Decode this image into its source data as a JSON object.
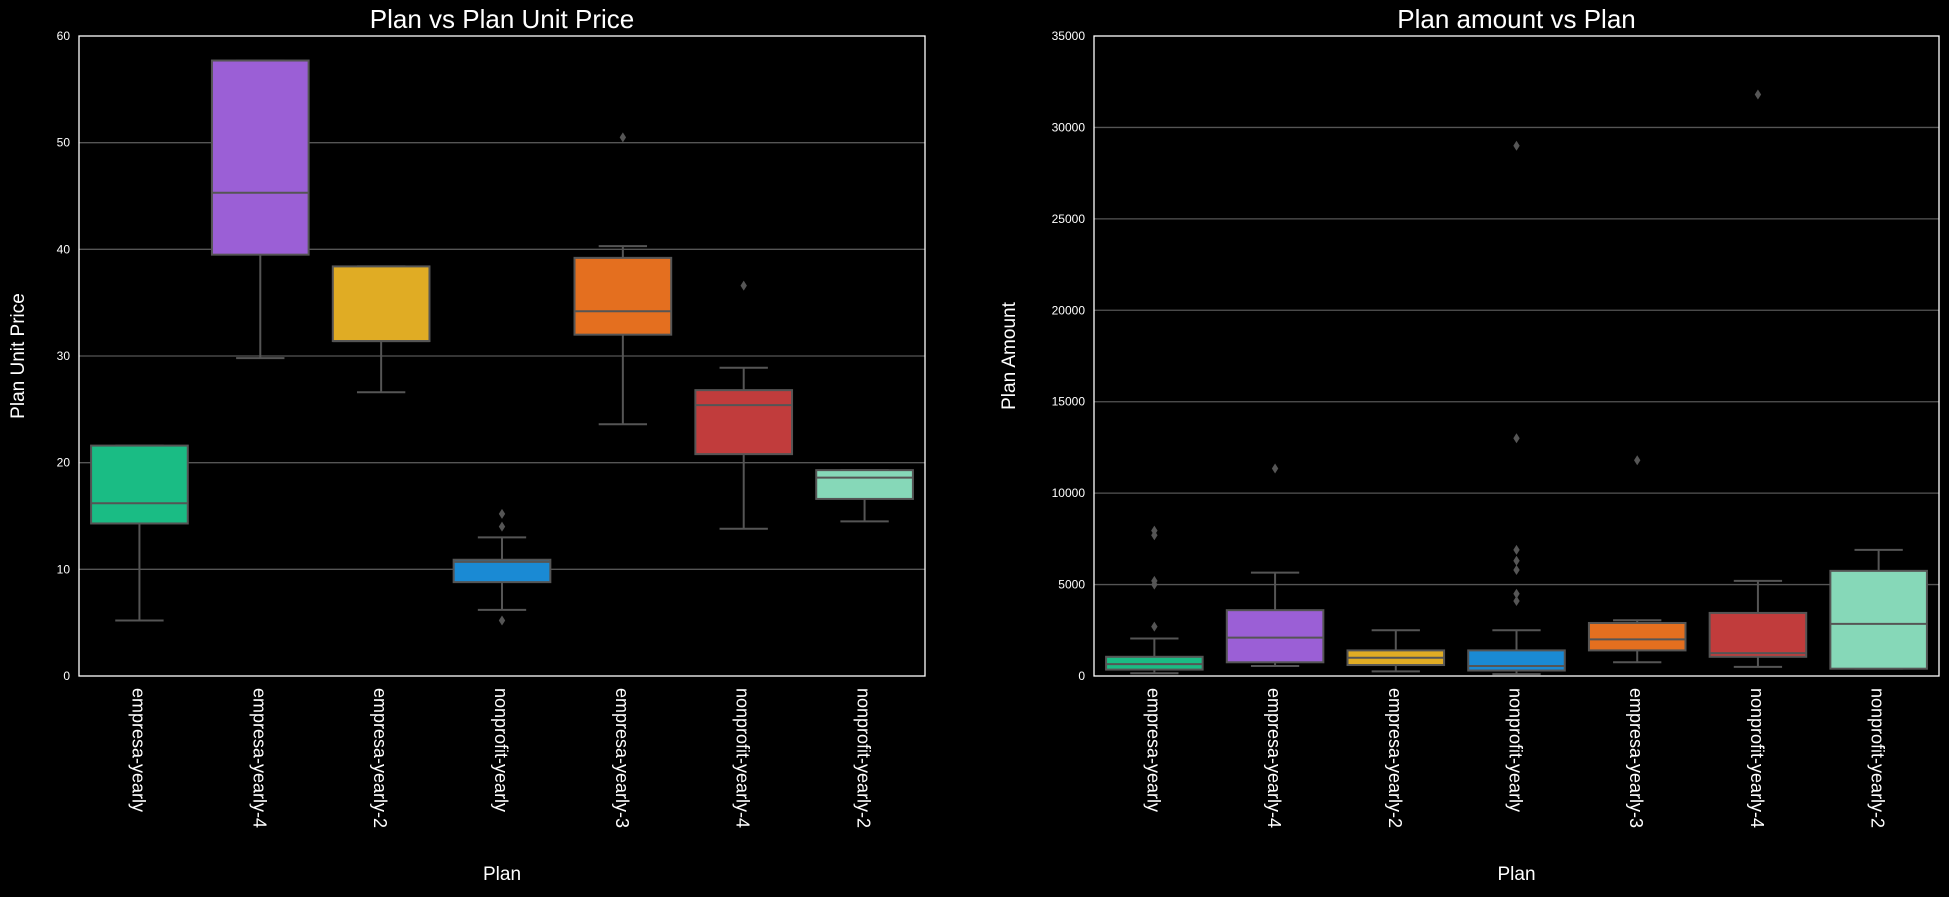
{
  "chart_data": [
    {
      "type": "box",
      "title": "Plan vs Plan Unit Price",
      "xlabel": "Plan",
      "ylabel": "Plan Unit Price",
      "ylim": [
        0,
        60
      ],
      "yticks": [
        0,
        10,
        20,
        30,
        40,
        50,
        60
      ],
      "grid": "horizontal",
      "categories": [
        "empresa-yearly",
        "empresa-yearly-4",
        "empresa-yearly-2",
        "nonprofit-yearly",
        "empresa-yearly-3",
        "nonprofit-yearly-4",
        "nonprofit-yearly-2"
      ],
      "colors": [
        "#1abc84",
        "#9b5fd6",
        "#e0ac24",
        "#1a8ad4",
        "#e46f1f",
        "#c13c3c",
        "#86d8b8"
      ],
      "boxes": [
        {
          "min": 5.2,
          "q1": 14.3,
          "median": 16.2,
          "q3": 21.6,
          "max": 21.6,
          "outliers": []
        },
        {
          "min": 29.8,
          "q1": 39.5,
          "median": 45.3,
          "q3": 57.7,
          "max": 57.7,
          "outliers": []
        },
        {
          "min": 26.6,
          "q1": 31.4,
          "median": 31.4,
          "q3": 38.4,
          "max": 38.4,
          "outliers": []
        },
        {
          "min": 6.2,
          "q1": 8.8,
          "median": 10.7,
          "q3": 10.9,
          "max": 13.0,
          "outliers": [
            5.2,
            14.0,
            15.2
          ]
        },
        {
          "min": 23.6,
          "q1": 32.0,
          "median": 34.2,
          "q3": 39.2,
          "max": 40.3,
          "outliers": [
            50.5
          ]
        },
        {
          "min": 13.8,
          "q1": 20.8,
          "median": 25.4,
          "q3": 26.8,
          "max": 28.9,
          "outliers": [
            36.6
          ]
        },
        {
          "min": 14.5,
          "q1": 16.6,
          "median": 18.6,
          "q3": 19.3,
          "max": 19.3,
          "outliers": []
        }
      ]
    },
    {
      "type": "box",
      "title": "Plan amount vs Plan",
      "xlabel": "Plan",
      "ylabel": "Plan Amount",
      "ylim": [
        0,
        35000
      ],
      "yticks": [
        0,
        5000,
        10000,
        15000,
        20000,
        25000,
        30000,
        35000
      ],
      "grid": "horizontal",
      "categories": [
        "empresa-yearly",
        "empresa-yearly-4",
        "empresa-yearly-2",
        "nonprofit-yearly",
        "empresa-yearly-3",
        "nonprofit-yearly-4",
        "nonprofit-yearly-2"
      ],
      "colors": [
        "#1abc84",
        "#9b5fd6",
        "#e0ac24",
        "#1a8ad4",
        "#e46f1f",
        "#c13c3c",
        "#86d8b8"
      ],
      "boxes": [
        {
          "min": 150,
          "q1": 350,
          "median": 650,
          "q3": 1050,
          "max": 2050,
          "outliers": [
            2700,
            5000,
            5200,
            7700,
            7950
          ]
        },
        {
          "min": 550,
          "q1": 750,
          "median": 2100,
          "q3": 3600,
          "max": 5650,
          "outliers": [
            11350
          ]
        },
        {
          "min": 250,
          "q1": 600,
          "median": 1000,
          "q3": 1400,
          "max": 2500,
          "outliers": []
        },
        {
          "min": 100,
          "q1": 300,
          "median": 550,
          "q3": 1400,
          "max": 2500,
          "outliers": [
            4100,
            4500,
            5800,
            6300,
            6900,
            13000,
            29000
          ]
        },
        {
          "min": 750,
          "q1": 1400,
          "median": 2000,
          "q3": 2900,
          "max": 3050,
          "outliers": [
            11800
          ]
        },
        {
          "min": 500,
          "q1": 1050,
          "median": 1250,
          "q3": 3450,
          "max": 5200,
          "outliers": [
            31800
          ]
        },
        {
          "min": 400,
          "q1": 400,
          "median": 2850,
          "q3": 5750,
          "max": 6900,
          "outliers": []
        }
      ]
    }
  ]
}
